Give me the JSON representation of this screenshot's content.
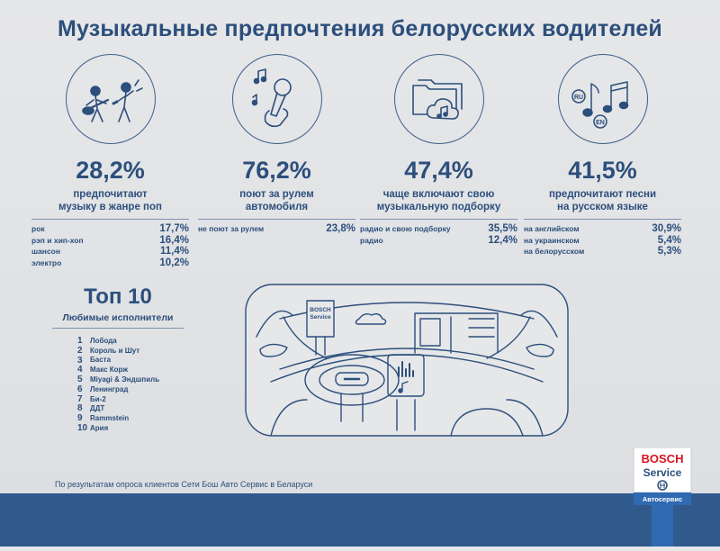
{
  "title": "Музыкальные предпочтения белорусских водителей",
  "stats": [
    {
      "icon": "band-singers-icon",
      "percent": "28,2%",
      "desc1": "предпочитают",
      "desc2": "музыку в жанре поп",
      "rows": [
        {
          "label": "рок",
          "value": "17,7%"
        },
        {
          "label": "рэп и хип-хоп",
          "value": "16,4%"
        },
        {
          "label": "шансон",
          "value": "11,4%"
        },
        {
          "label": "электро",
          "value": "10,2%"
        }
      ]
    },
    {
      "icon": "microphone-hand-icon",
      "percent": "76,2%",
      "desc1": "поют за рулем",
      "desc2": "автомобиля",
      "rows": [
        {
          "label": "не поют за рулем",
          "value": "23,8%"
        }
      ]
    },
    {
      "icon": "music-folders-icon",
      "percent": "47,4%",
      "desc1": "чаще включают свою",
      "desc2": "музыкальную подборку",
      "rows": [
        {
          "label": "радио и свою подборку",
          "value": "35,5%"
        },
        {
          "label": "радио",
          "value": "12,4%"
        }
      ]
    },
    {
      "icon": "music-notes-language-icon",
      "percent": "41,5%",
      "desc1": "предпочитают песни",
      "desc2": "на русском языке",
      "rows": [
        {
          "label": "на английском",
          "value": "30,9%"
        },
        {
          "label": "на украинском",
          "value": "5,4%"
        },
        {
          "label": "на белорусском",
          "value": "5,3%"
        }
      ]
    }
  ],
  "top10": {
    "title": "Топ 10",
    "subtitle": "Любимые исполнители",
    "artists": [
      {
        "num": "1",
        "name": "Лобода"
      },
      {
        "num": "2",
        "name": "Король и Шут"
      },
      {
        "num": "3",
        "name": "Баста"
      },
      {
        "num": "4",
        "name": "Макс Корж"
      },
      {
        "num": "5",
        "name": "Miyagi & Эндшпиль"
      },
      {
        "num": "6",
        "name": "Ленинград"
      },
      {
        "num": "7",
        "name": "Би-2"
      },
      {
        "num": "8",
        "name": "ДДТ"
      },
      {
        "num": "9",
        "name": "Rammstein"
      },
      {
        "num": "10",
        "name": "Ария"
      }
    ]
  },
  "car_badge": {
    "line1": "BOSCH",
    "line2": "Service"
  },
  "icon_lang_labels": {
    "ru": "RU",
    "en": "EN"
  },
  "footnote": "По результатам опроса клиентов Сети Бош Авто Сервис в Беларуси",
  "bosch_sign": {
    "line1": "BOSCH",
    "line2": "Service",
    "caption": "Автосервис"
  },
  "colors": {
    "primary": "#2c4f7c",
    "background": "#e1e2e4",
    "bar": "#315a8c",
    "bosch_red": "#d6141e"
  }
}
